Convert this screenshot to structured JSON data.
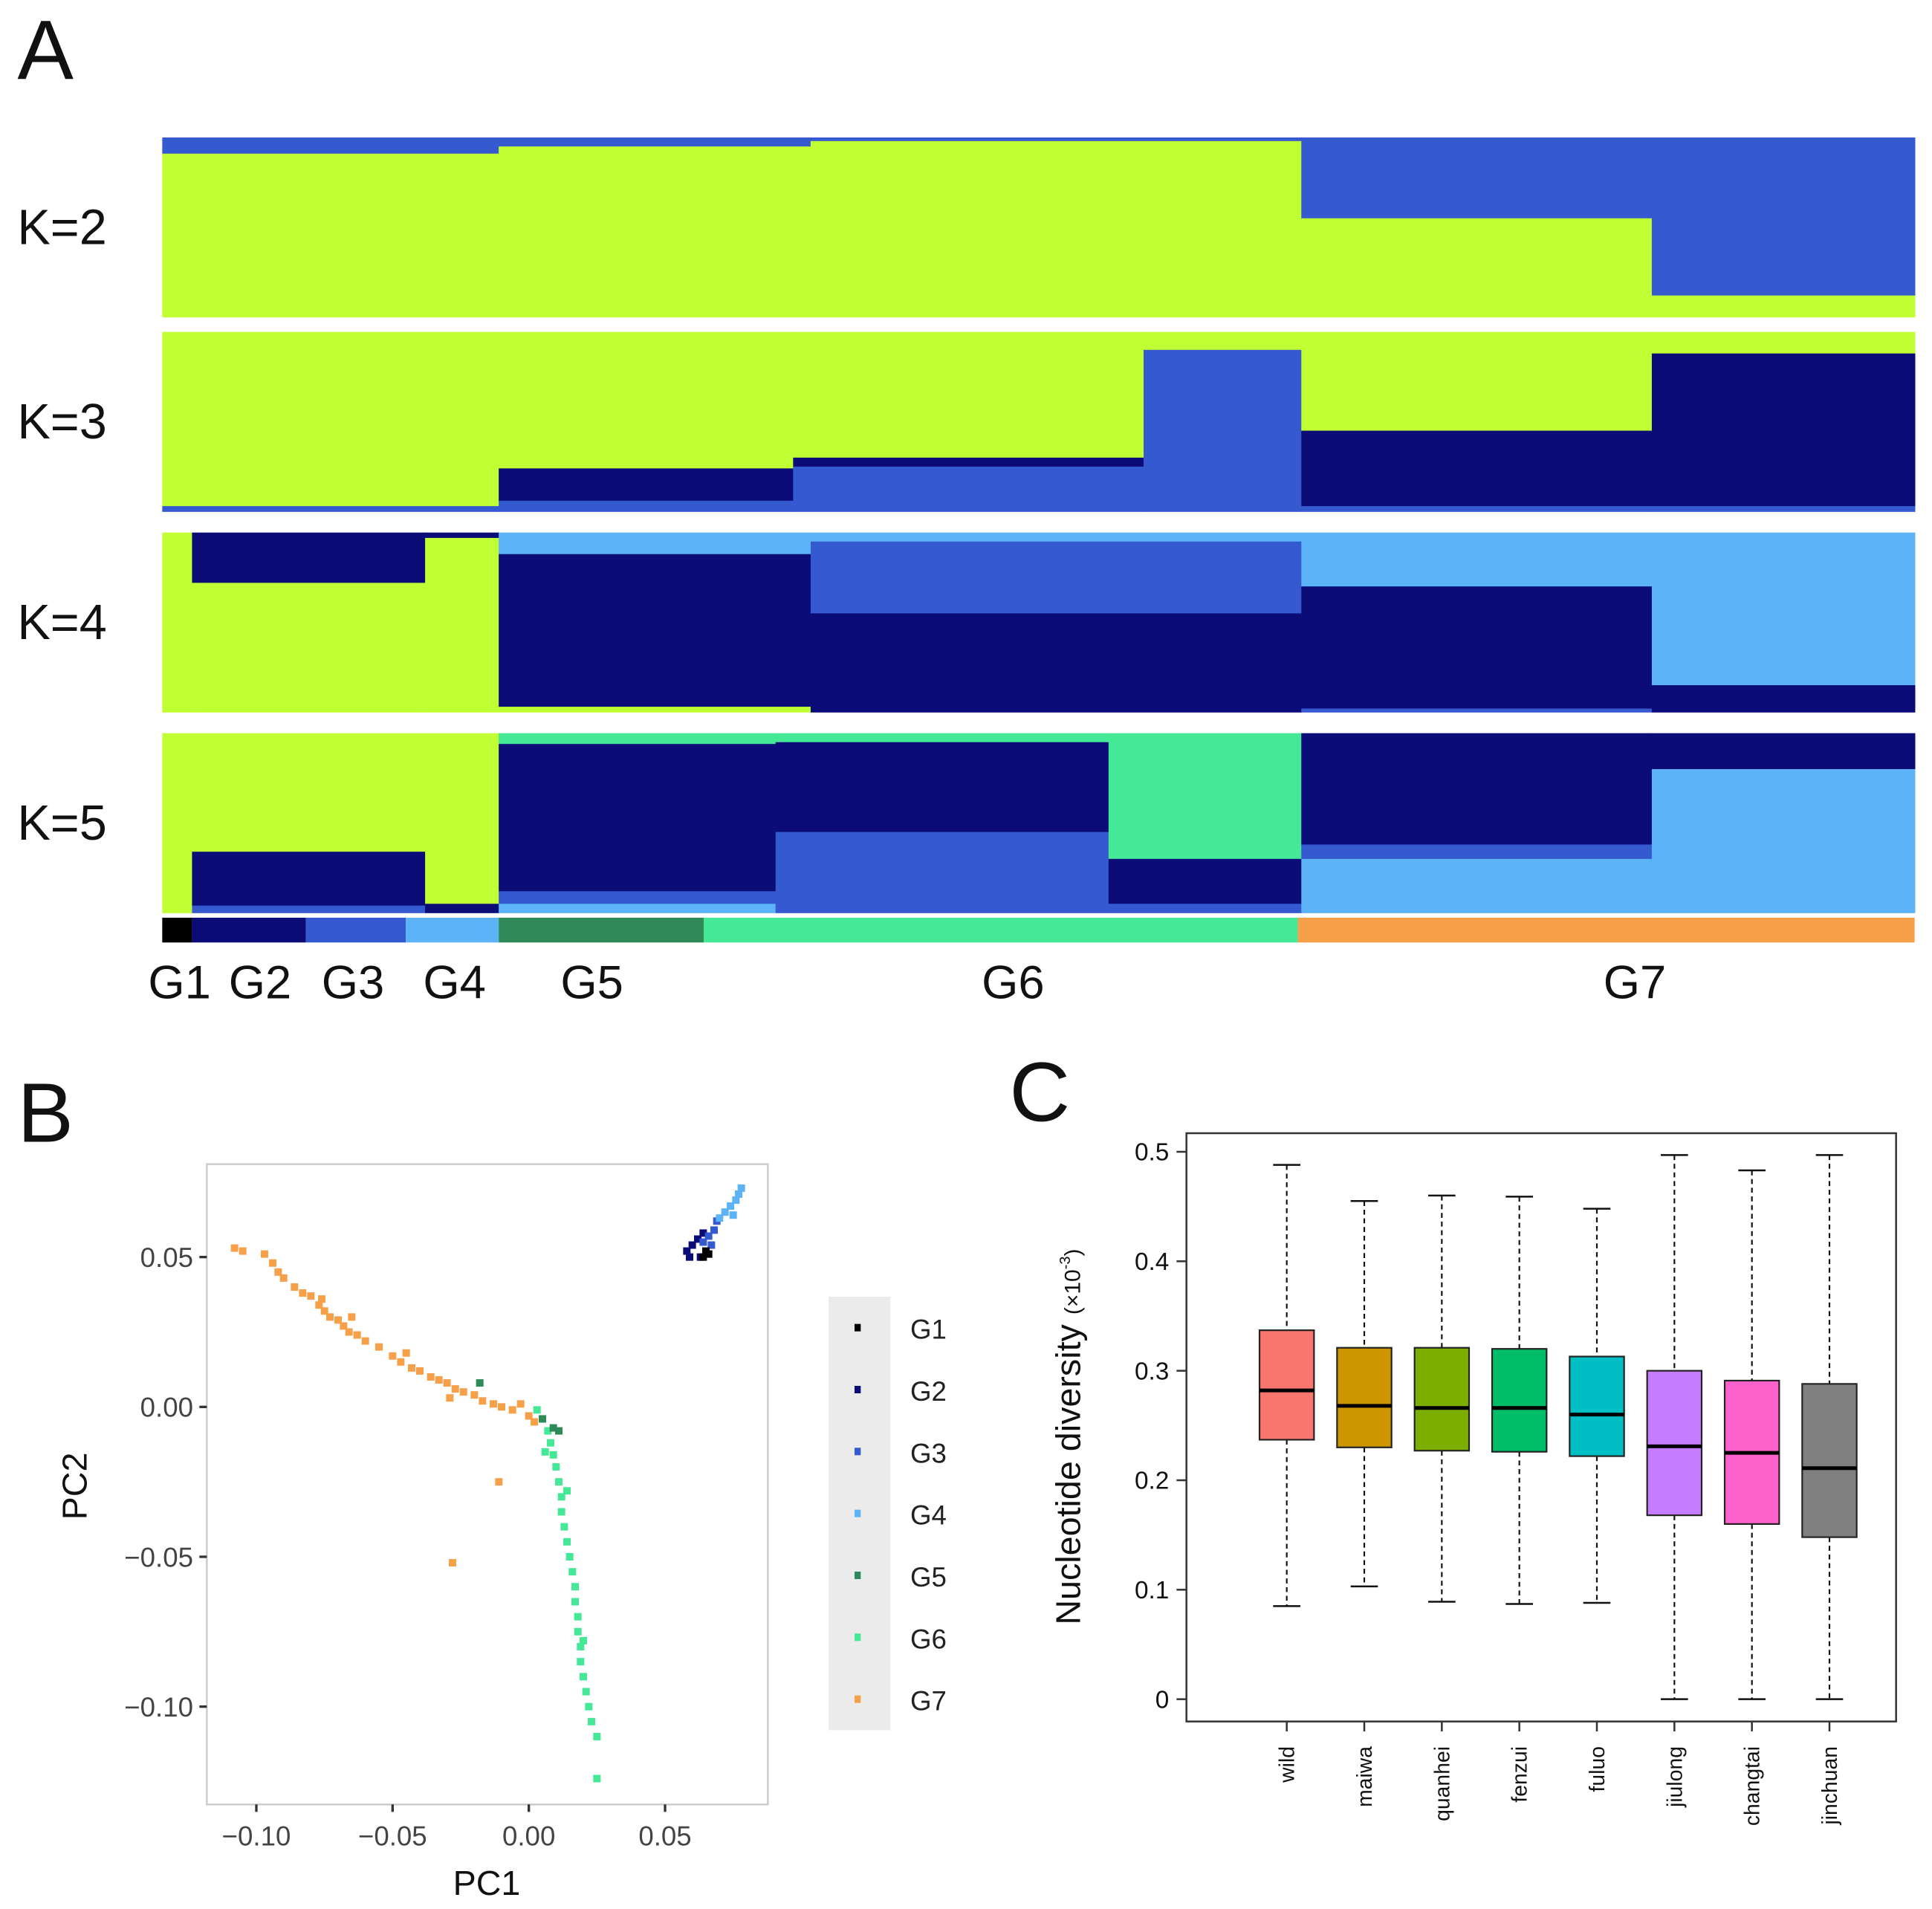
{
  "panels": {
    "a": "A",
    "b": "B",
    "c": "C"
  },
  "colors": {
    "lime": "#bfff33",
    "royal": "#3559cf",
    "navy": "#0b0c78",
    "light": "#5cb3f7",
    "sea": "#45e896",
    "G1": "#000000",
    "G2": "#0b0c78",
    "G3": "#3559cf",
    "G4": "#5cb3f7",
    "G5": "#2e8b57",
    "G6": "#45e896",
    "G7": "#f7a04a"
  },
  "chart_data": [
    {
      "type": "stacked-bar",
      "title": "A",
      "x_unit": "percent of samples (ordered)",
      "groups": [
        {
          "name": "G1",
          "start": 0,
          "end": 1.7
        },
        {
          "name": "G2",
          "start": 1.7,
          "end": 8.2
        },
        {
          "name": "G3",
          "start": 8.2,
          "end": 13.9
        },
        {
          "name": "G4",
          "start": 13.9,
          "end": 19.2
        },
        {
          "name": "G5",
          "start": 19.2,
          "end": 30.9
        },
        {
          "name": "G6",
          "start": 30.9,
          "end": 64.8
        },
        {
          "name": "G7",
          "start": 64.8,
          "end": 100
        }
      ],
      "rows": [
        {
          "label": "K=2",
          "blocks": [
            {
              "start": 0,
              "end": 19.2,
              "stack": [
                [
                  "royal",
                  0.09
                ],
                [
                  "lime",
                  0.91
                ]
              ]
            },
            {
              "start": 19.2,
              "end": 37,
              "stack": [
                [
                  "royal",
                  0.05
                ],
                [
                  "lime",
                  0.95
                ]
              ]
            },
            {
              "start": 37,
              "end": 65,
              "stack": [
                [
                  "royal",
                  0.02
                ],
                [
                  "lime",
                  0.98
                ]
              ]
            },
            {
              "start": 65,
              "end": 85,
              "stack": [
                [
                  "royal",
                  0.45
                ],
                [
                  "lime",
                  0.55
                ]
              ]
            },
            {
              "start": 85,
              "end": 100,
              "stack": [
                [
                  "royal",
                  0.88
                ],
                [
                  "lime",
                  0.12
                ]
              ]
            }
          ]
        },
        {
          "label": "K=3",
          "blocks": [
            {
              "start": 0,
              "end": 19.2,
              "stack": [
                [
                  "lime",
                  0.97
                ],
                [
                  "royal",
                  0.03
                ]
              ]
            },
            {
              "start": 19.2,
              "end": 36,
              "stack": [
                [
                  "lime",
                  0.76
                ],
                [
                  "navy",
                  0.18
                ],
                [
                  "royal",
                  0.06
                ]
              ]
            },
            {
              "start": 36,
              "end": 56,
              "stack": [
                [
                  "lime",
                  0.7
                ],
                [
                  "navy",
                  0.05
                ],
                [
                  "royal",
                  0.25
                ]
              ]
            },
            {
              "start": 56,
              "end": 65,
              "stack": [
                [
                  "lime",
                  0.1
                ],
                [
                  "royal",
                  0.9
                ]
              ]
            },
            {
              "start": 65,
              "end": 85,
              "stack": [
                [
                  "lime",
                  0.55
                ],
                [
                  "navy",
                  0.42
                ],
                [
                  "royal",
                  0.03
                ]
              ]
            },
            {
              "start": 85,
              "end": 100,
              "stack": [
                [
                  "lime",
                  0.12
                ],
                [
                  "navy",
                  0.85
                ],
                [
                  "royal",
                  0.03
                ]
              ]
            }
          ]
        },
        {
          "label": "K=4",
          "blocks": [
            {
              "start": 0,
              "end": 1.7,
              "stack": [
                [
                  "lime",
                  1.0
                ]
              ]
            },
            {
              "start": 1.7,
              "end": 15,
              "stack": [
                [
                  "navy",
                  0.28
                ],
                [
                  "lime",
                  0.72
                ]
              ]
            },
            {
              "start": 15,
              "end": 19.2,
              "stack": [
                [
                  "navy",
                  0.03
                ],
                [
                  "lime",
                  0.97
                ]
              ]
            },
            {
              "start": 19.2,
              "end": 37,
              "stack": [
                [
                  "light",
                  0.12
                ],
                [
                  "navy",
                  0.85
                ],
                [
                  "lime",
                  0.03
                ]
              ]
            },
            {
              "start": 37,
              "end": 65,
              "stack": [
                [
                  "light",
                  0.05
                ],
                [
                  "royal",
                  0.4
                ],
                [
                  "navy",
                  0.55
                ]
              ]
            },
            {
              "start": 65,
              "end": 85,
              "stack": [
                [
                  "light",
                  0.3
                ],
                [
                  "navy",
                  0.68
                ],
                [
                  "royal",
                  0.02
                ]
              ]
            },
            {
              "start": 85,
              "end": 100,
              "stack": [
                [
                  "light",
                  0.85
                ],
                [
                  "navy",
                  0.15
                ]
              ]
            }
          ]
        },
        {
          "label": "K=5",
          "blocks": [
            {
              "start": 0,
              "end": 1.7,
              "stack": [
                [
                  "lime",
                  1.0
                ]
              ]
            },
            {
              "start": 1.7,
              "end": 15,
              "stack": [
                [
                  "lime",
                  0.66
                ],
                [
                  "navy",
                  0.3
                ],
                [
                  "royal",
                  0.04
                ]
              ]
            },
            {
              "start": 15,
              "end": 19.2,
              "stack": [
                [
                  "lime",
                  0.95
                ],
                [
                  "navy",
                  0.05
                ]
              ]
            },
            {
              "start": 19.2,
              "end": 35,
              "stack": [
                [
                  "sea",
                  0.06
                ],
                [
                  "navy",
                  0.82
                ],
                [
                  "royal",
                  0.07
                ],
                [
                  "light",
                  0.05
                ]
              ]
            },
            {
              "start": 35,
              "end": 54,
              "stack": [
                [
                  "sea",
                  0.05
                ],
                [
                  "navy",
                  0.5
                ],
                [
                  "royal",
                  0.45
                ]
              ]
            },
            {
              "start": 54,
              "end": 65,
              "stack": [
                [
                  "sea",
                  0.7
                ],
                [
                  "navy",
                  0.25
                ],
                [
                  "royal",
                  0.05
                ]
              ]
            },
            {
              "start": 65,
              "end": 85,
              "stack": [
                [
                  "navy",
                  0.62
                ],
                [
                  "royal",
                  0.08
                ],
                [
                  "light",
                  0.3
                ]
              ]
            },
            {
              "start": 85,
              "end": 100,
              "stack": [
                [
                  "navy",
                  0.2
                ],
                [
                  "light",
                  0.8
                ]
              ]
            }
          ]
        }
      ]
    },
    {
      "type": "scatter",
      "title": "B",
      "xlabel": "PC1",
      "ylabel": "PC2",
      "xlim": [
        -0.118,
        0.088
      ],
      "ylim": [
        -0.129,
        0.081
      ],
      "xticks": [
        "-0.10",
        "-0.05",
        "0.00",
        "0.05"
      ],
      "xtick_values": [
        -0.1,
        -0.05,
        0,
        0.05
      ],
      "yticks": [
        "0.05",
        "0.00",
        "-0.05",
        "-0.10"
      ],
      "ytick_values": [
        0.05,
        0,
        -0.05,
        -0.1
      ],
      "legend": [
        "G1",
        "G2",
        "G3",
        "G4",
        "G5",
        "G6",
        "G7"
      ],
      "legend_position": "right",
      "series": [
        {
          "name": "G7",
          "points": [
            [
              -0.108,
              0.053
            ],
            [
              -0.105,
              0.052
            ],
            [
              -0.097,
              0.051
            ],
            [
              -0.094,
              0.048
            ],
            [
              -0.092,
              0.045
            ],
            [
              -0.09,
              0.043
            ],
            [
              -0.086,
              0.04
            ],
            [
              -0.083,
              0.038
            ],
            [
              -0.08,
              0.037
            ],
            [
              -0.077,
              0.034
            ],
            [
              -0.075,
              0.032
            ],
            [
              -0.073,
              0.03
            ],
            [
              -0.07,
              0.029
            ],
            [
              -0.068,
              0.027
            ],
            [
              -0.066,
              0.025
            ],
            [
              -0.063,
              0.024
            ],
            [
              -0.06,
              0.022
            ],
            [
              -0.055,
              0.02
            ],
            [
              -0.05,
              0.017
            ],
            [
              -0.047,
              0.015
            ],
            [
              -0.043,
              0.013
            ],
            [
              -0.04,
              0.012
            ],
            [
              -0.036,
              0.01
            ],
            [
              -0.033,
              0.009
            ],
            [
              -0.03,
              0.008
            ],
            [
              -0.027,
              0.006
            ],
            [
              -0.024,
              0.005
            ],
            [
              -0.02,
              0.004
            ],
            [
              -0.017,
              0.002
            ],
            [
              -0.013,
              0.001
            ],
            [
              -0.01,
              0.0
            ],
            [
              -0.006,
              -0.001
            ],
            [
              -0.003,
              0.001
            ],
            [
              0.0,
              -0.003
            ],
            [
              0.002,
              -0.005
            ],
            [
              -0.029,
              0.003
            ],
            [
              -0.065,
              0.03
            ],
            [
              -0.076,
              0.036
            ],
            [
              -0.045,
              0.018
            ],
            [
              -0.011,
              -0.025
            ],
            [
              -0.028,
              -0.052
            ]
          ]
        },
        {
          "name": "G6",
          "points": [
            [
              0.003,
              -0.001
            ],
            [
              0.005,
              -0.004
            ],
            [
              0.007,
              -0.008
            ],
            [
              0.008,
              -0.012
            ],
            [
              0.009,
              -0.016
            ],
            [
              0.01,
              -0.02
            ],
            [
              0.011,
              -0.025
            ],
            [
              0.012,
              -0.03
            ],
            [
              0.012,
              -0.035
            ],
            [
              0.013,
              -0.04
            ],
            [
              0.014,
              -0.045
            ],
            [
              0.015,
              -0.05
            ],
            [
              0.016,
              -0.055
            ],
            [
              0.017,
              -0.06
            ],
            [
              0.017,
              -0.065
            ],
            [
              0.018,
              -0.07
            ],
            [
              0.018,
              -0.075
            ],
            [
              0.019,
              -0.08
            ],
            [
              0.019,
              -0.085
            ],
            [
              0.02,
              -0.09
            ],
            [
              0.021,
              -0.095
            ],
            [
              0.022,
              -0.1
            ],
            [
              0.023,
              -0.105
            ],
            [
              0.025,
              -0.11
            ],
            [
              0.025,
              -0.124
            ],
            [
              0.006,
              -0.015
            ],
            [
              0.014,
              -0.028
            ],
            [
              0.02,
              -0.078
            ]
          ]
        },
        {
          "name": "G5",
          "points": [
            [
              0.005,
              -0.004
            ],
            [
              0.009,
              -0.007
            ],
            [
              0.011,
              -0.008
            ],
            [
              -0.018,
              0.008
            ]
          ]
        },
        {
          "name": "G2",
          "points": [
            [
              0.058,
              0.052
            ],
            [
              0.059,
              0.05
            ],
            [
              0.06,
              0.054
            ],
            [
              0.062,
              0.056
            ],
            [
              0.063,
              0.05
            ],
            [
              0.064,
              0.058
            ]
          ]
        },
        {
          "name": "G3",
          "points": [
            [
              0.064,
              0.055
            ],
            [
              0.066,
              0.057
            ],
            [
              0.068,
              0.059
            ],
            [
              0.069,
              0.062
            ],
            [
              0.067,
              0.054
            ]
          ]
        },
        {
          "name": "G4",
          "points": [
            [
              0.07,
              0.063
            ],
            [
              0.072,
              0.065
            ],
            [
              0.074,
              0.067
            ],
            [
              0.076,
              0.069
            ],
            [
              0.077,
              0.071
            ],
            [
              0.078,
              0.073
            ],
            [
              0.075,
              0.064
            ]
          ]
        },
        {
          "name": "G1",
          "points": [
            [
              0.064,
              0.05
            ],
            [
              0.066,
              0.051
            ],
            [
              0.065,
              0.052
            ]
          ]
        }
      ]
    },
    {
      "type": "box",
      "title": "C",
      "ylabel": "Nucleotide diversity",
      "ylabel_unit": "(×10",
      "ylabel_exp": "-3",
      "ylabel_close": ")",
      "ylim": [
        -0.02,
        0.517
      ],
      "yticks": [
        "0",
        "0.1",
        "0.2",
        "0.3",
        "0.4",
        "0.5"
      ],
      "ytick_values": [
        0,
        0.1,
        0.2,
        0.3,
        0.4,
        0.5
      ],
      "categories": [
        "wild",
        "maiwa",
        "quanhei",
        "fenzui",
        "fuluo",
        "jiulong",
        "changtai",
        "jinchuan"
      ],
      "fill_colors": [
        "#f8766d",
        "#cd9600",
        "#7cae00",
        "#00be67",
        "#00bfc4",
        "#c77cff",
        "#ff61cc",
        "#808080"
      ],
      "boxes": [
        {
          "min": 0.085,
          "q1": 0.237,
          "median": 0.282,
          "q3": 0.337,
          "max": 0.488
        },
        {
          "min": 0.103,
          "q1": 0.23,
          "median": 0.268,
          "q3": 0.321,
          "max": 0.455
        },
        {
          "min": 0.089,
          "q1": 0.227,
          "median": 0.266,
          "q3": 0.321,
          "max": 0.46
        },
        {
          "min": 0.087,
          "q1": 0.226,
          "median": 0.266,
          "q3": 0.32,
          "max": 0.459
        },
        {
          "min": 0.088,
          "q1": 0.222,
          "median": 0.26,
          "q3": 0.313,
          "max": 0.448
        },
        {
          "min": 0.0,
          "q1": 0.168,
          "median": 0.231,
          "q3": 0.3,
          "max": 0.497
        },
        {
          "min": 0.0,
          "q1": 0.16,
          "median": 0.225,
          "q3": 0.291,
          "max": 0.483
        },
        {
          "min": 0.0,
          "q1": 0.148,
          "median": 0.211,
          "q3": 0.288,
          "max": 0.497
        }
      ]
    }
  ]
}
